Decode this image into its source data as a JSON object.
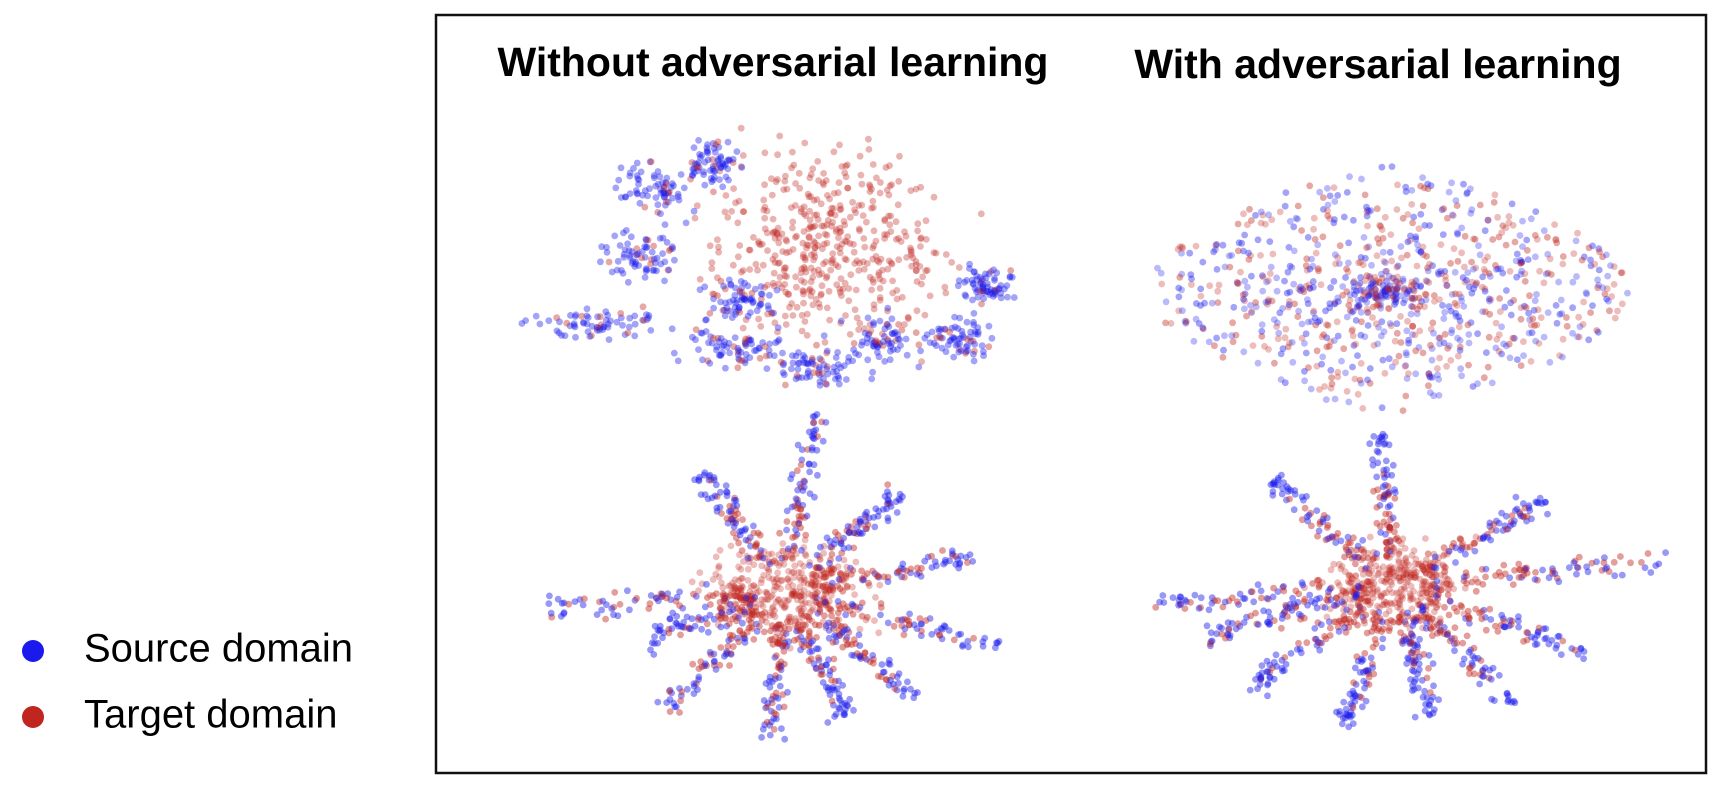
{
  "panels": [
    {
      "title": "Without adversarial learning"
    },
    {
      "title": "With adversarial learning"
    }
  ],
  "legend": [
    {
      "label": "Source domain",
      "color": "#1a1aee"
    },
    {
      "label": "Target domain",
      "color": "#c0261f"
    }
  ]
}
